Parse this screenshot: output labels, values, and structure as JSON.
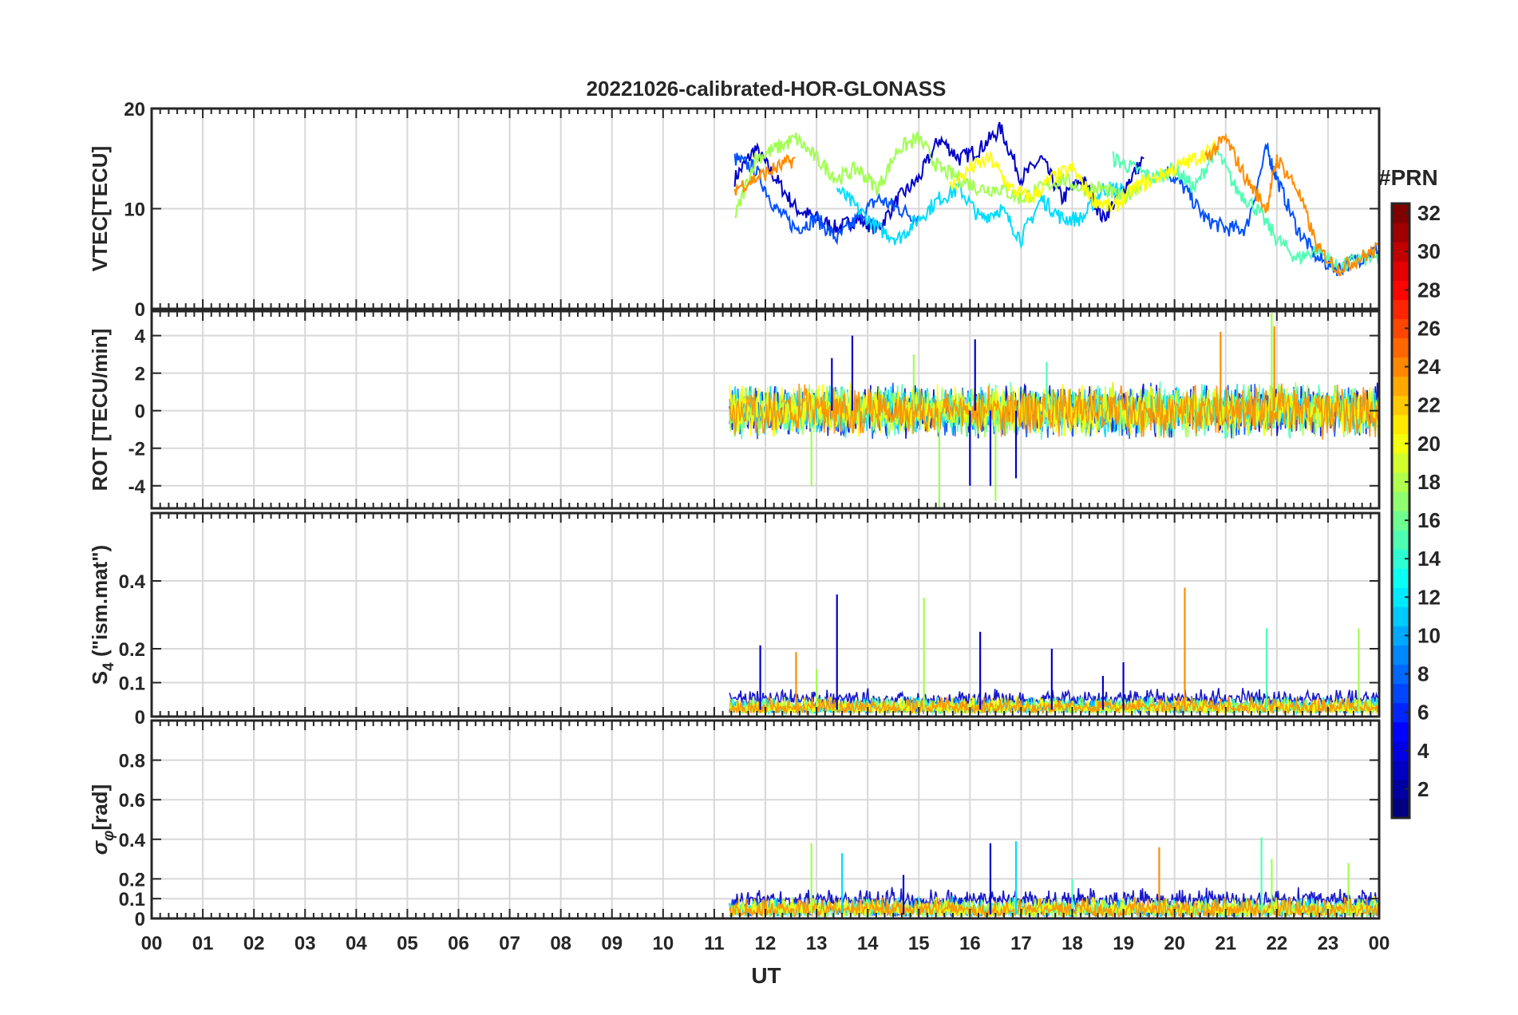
{
  "chart_data": {
    "type": "line",
    "title": "20221026-calibrated-HOR-GLONASS",
    "xlabel": "UT",
    "x_ticks": [
      "00",
      "01",
      "02",
      "03",
      "04",
      "05",
      "06",
      "07",
      "08",
      "09",
      "10",
      "11",
      "12",
      "13",
      "14",
      "15",
      "16",
      "17",
      "18",
      "19",
      "20",
      "21",
      "22",
      "23",
      "00"
    ],
    "xlim_hours": [
      0,
      24
    ],
    "data_start_hour": 11.3,
    "colorbar": {
      "label": "#PRN",
      "ticks": [
        2,
        4,
        6,
        8,
        10,
        12,
        14,
        16,
        18,
        20,
        22,
        24,
        26,
        28,
        30,
        32
      ],
      "range": [
        1,
        32
      ],
      "colormap": "jet"
    },
    "panels": [
      {
        "id": "vtec",
        "ylabel": "VTEC[TECU]",
        "ylim": [
          0,
          20
        ],
        "yticks": [
          0,
          10,
          20
        ],
        "ytick_labels": [
          "0",
          "10",
          "20"
        ],
        "series": [
          {
            "prn": 2,
            "color": "#0000c8",
            "x": [
              11.4,
              11.8,
              12.2,
              12.6,
              13.0,
              13.4,
              13.8,
              14.2,
              14.6,
              15.0,
              15.4,
              15.8,
              16.2,
              16.6,
              17.0,
              17.4,
              17.8,
              18.2,
              18.6,
              19.0,
              19.4
            ],
            "y": [
              13,
              16,
              13,
              10,
              9,
              8,
              9,
              8,
              11,
              13,
              17,
              15,
              16,
              18,
              13,
              15,
              11,
              13,
              9,
              12,
              15
            ]
          },
          {
            "prn": 6,
            "color": "#0050ff",
            "x": [
              11.4,
              11.8,
              12.2,
              12.6,
              13.0,
              13.4,
              13.8,
              14.2,
              14.6,
              15.0,
              19.8,
              20.2,
              20.6,
              21.0,
              21.4,
              21.8,
              22.0,
              22.4,
              22.8,
              23.2,
              23.6,
              24.0
            ],
            "y": [
              15,
              14,
              10,
              8,
              9,
              7,
              9,
              11,
              10,
              9,
              14,
              12,
              9,
              8,
              8,
              16,
              13,
              8,
              5,
              4,
              5,
              6
            ]
          },
          {
            "prn": 12,
            "color": "#00dcff",
            "x": [
              13.4,
              13.8,
              14.2,
              14.6,
              15.0,
              15.4,
              15.8,
              16.2,
              16.6,
              17.0,
              17.4,
              17.8,
              18.2,
              18.6,
              19.0
            ],
            "y": [
              12,
              10,
              8,
              7,
              9,
              11,
              12,
              9,
              10,
              7,
              11,
              9,
              9,
              12,
              12
            ]
          },
          {
            "prn": 15,
            "color": "#50ffb4",
            "x": [
              18.8,
              19.2,
              19.6,
              20.0,
              20.4,
              20.8,
              21.2,
              21.6,
              22.0,
              22.4,
              22.8,
              23.2,
              23.6,
              24.0
            ],
            "y": [
              15,
              14,
              13,
              14,
              12,
              16,
              12,
              10,
              7,
              5,
              6,
              4,
              5,
              5
            ]
          },
          {
            "prn": 17,
            "color": "#a0ff50",
            "x": [
              11.4,
              11.8,
              12.2,
              12.6,
              13.0,
              13.4,
              13.8,
              14.2,
              14.6,
              15.0,
              15.4,
              15.8,
              16.2,
              16.6,
              17.0,
              17.4,
              17.8,
              18.2,
              18.6,
              19.0,
              19.4
            ],
            "y": [
              9,
              15,
              16,
              17,
              15,
              13,
              14,
              12,
              16,
              17,
              14,
              13,
              12,
              12,
              11,
              12,
              13,
              12,
              12,
              11,
              13
            ]
          },
          {
            "prn": 19,
            "color": "#ffff00",
            "x": [
              15.6,
              16.0,
              16.4,
              16.8,
              17.2,
              17.6,
              18.0,
              18.4,
              18.8,
              19.2,
              19.6,
              20.0,
              20.4,
              20.8
            ],
            "y": [
              12,
              14,
              15,
              12,
              11,
              13,
              14,
              11,
              10,
              12,
              13,
              14,
              15,
              16
            ]
          },
          {
            "prn": 23,
            "color": "#ff8c00",
            "x": [
              11.4,
              11.8,
              12.2,
              12.6,
              20.6,
              21.0,
              21.4,
              21.8,
              22.0,
              22.4,
              22.8,
              23.2,
              23.6,
              24.0
            ],
            "y": [
              12,
              13,
              14,
              15,
              15,
              17,
              13,
              10,
              15,
              12,
              6,
              4,
              5,
              6
            ]
          }
        ]
      },
      {
        "id": "rot",
        "ylabel": "ROT [TECU/min]",
        "ylim": [
          -5.2,
          5.3
        ],
        "yticks": [
          -4,
          -2,
          0,
          2,
          4
        ],
        "ytick_labels": [
          "-4",
          "-2",
          "0",
          "2",
          "4"
        ],
        "band": {
          "x": [
            11.3,
            24.0
          ],
          "typical_amplitude": 1.0
        },
        "spikes": [
          {
            "x": 13.3,
            "y": 2.8,
            "color": "#0000c8"
          },
          {
            "x": 13.7,
            "y": 4.0,
            "color": "#0000c8"
          },
          {
            "x": 12.9,
            "y": -4.0,
            "color": "#a0ff50"
          },
          {
            "x": 15.4,
            "y": -5.2,
            "color": "#a0ff50"
          },
          {
            "x": 16.0,
            "y": -4.0,
            "color": "#0000c8"
          },
          {
            "x": 16.1,
            "y": 3.8,
            "color": "#0000c8"
          },
          {
            "x": 16.4,
            "y": -4.0,
            "color": "#0000c8"
          },
          {
            "x": 16.5,
            "y": -4.8,
            "color": "#a0ff50"
          },
          {
            "x": 16.9,
            "y": -3.6,
            "color": "#0000c8"
          },
          {
            "x": 20.9,
            "y": 4.2,
            "color": "#ff8c00"
          },
          {
            "x": 21.9,
            "y": 5.2,
            "color": "#a0ff50"
          },
          {
            "x": 21.95,
            "y": 4.5,
            "color": "#ff8c00"
          },
          {
            "x": 14.9,
            "y": 3.0,
            "color": "#a0ff50"
          },
          {
            "x": 17.5,
            "y": 2.6,
            "color": "#50ffb4"
          }
        ]
      },
      {
        "id": "s4",
        "ylabel": "S4 (\"ism.mat\")",
        "ylabel_main": "S",
        "ylabel_sub": "4",
        "ylabel_rest": " (\"ism.mat\")",
        "ylim": [
          0,
          0.6
        ],
        "yticks": [
          0,
          0.1,
          0.2,
          0.4
        ],
        "ytick_labels": [
          "0",
          "0.1",
          "0.2",
          "0.4"
        ],
        "band": {
          "x": [
            11.3,
            24.0
          ],
          "typical_amplitude": 0.04
        },
        "spikes": [
          {
            "x": 11.9,
            "y": 0.21,
            "color": "#0000c8"
          },
          {
            "x": 12.6,
            "y": 0.19,
            "color": "#ff8c00"
          },
          {
            "x": 13.4,
            "y": 0.36,
            "color": "#0000c8"
          },
          {
            "x": 15.1,
            "y": 0.35,
            "color": "#a0ff50"
          },
          {
            "x": 16.2,
            "y": 0.25,
            "color": "#0000c8"
          },
          {
            "x": 17.6,
            "y": 0.2,
            "color": "#0000c8"
          },
          {
            "x": 20.2,
            "y": 0.38,
            "color": "#ff8c00"
          },
          {
            "x": 21.8,
            "y": 0.26,
            "color": "#50ffb4"
          },
          {
            "x": 23.6,
            "y": 0.26,
            "color": "#a0ff50"
          },
          {
            "x": 13.0,
            "y": 0.14,
            "color": "#a0ff50"
          },
          {
            "x": 18.6,
            "y": 0.12,
            "color": "#0000c8"
          },
          {
            "x": 19.0,
            "y": 0.16,
            "color": "#0000c8"
          }
        ]
      },
      {
        "id": "sigma",
        "ylabel": "σφ[rad]",
        "ylabel_main": "σ",
        "ylabel_sub": "φ",
        "ylabel_rest": "[rad]",
        "ylim": [
          0,
          1.0
        ],
        "yticks": [
          0,
          0.1,
          0.2,
          0.4,
          0.6,
          0.8
        ],
        "ytick_labels": [
          "0",
          "0.1",
          "0.2",
          "0.4",
          "0.6",
          "0.8"
        ],
        "band": {
          "x": [
            11.3,
            24.0
          ],
          "typical_amplitude": 0.08
        },
        "spikes": [
          {
            "x": 12.9,
            "y": 0.38,
            "color": "#a0ff50"
          },
          {
            "x": 13.5,
            "y": 0.33,
            "color": "#00dcff"
          },
          {
            "x": 16.4,
            "y": 0.38,
            "color": "#0000c8"
          },
          {
            "x": 16.9,
            "y": 0.39,
            "color": "#00dcff"
          },
          {
            "x": 19.7,
            "y": 0.36,
            "color": "#ff8c00"
          },
          {
            "x": 21.7,
            "y": 0.41,
            "color": "#50ffb4"
          },
          {
            "x": 21.9,
            "y": 0.3,
            "color": "#a0ff50"
          },
          {
            "x": 23.4,
            "y": 0.28,
            "color": "#a0ff50"
          },
          {
            "x": 14.7,
            "y": 0.22,
            "color": "#0000c8"
          },
          {
            "x": 18.0,
            "y": 0.2,
            "color": "#50ffb4"
          }
        ]
      }
    ]
  }
}
